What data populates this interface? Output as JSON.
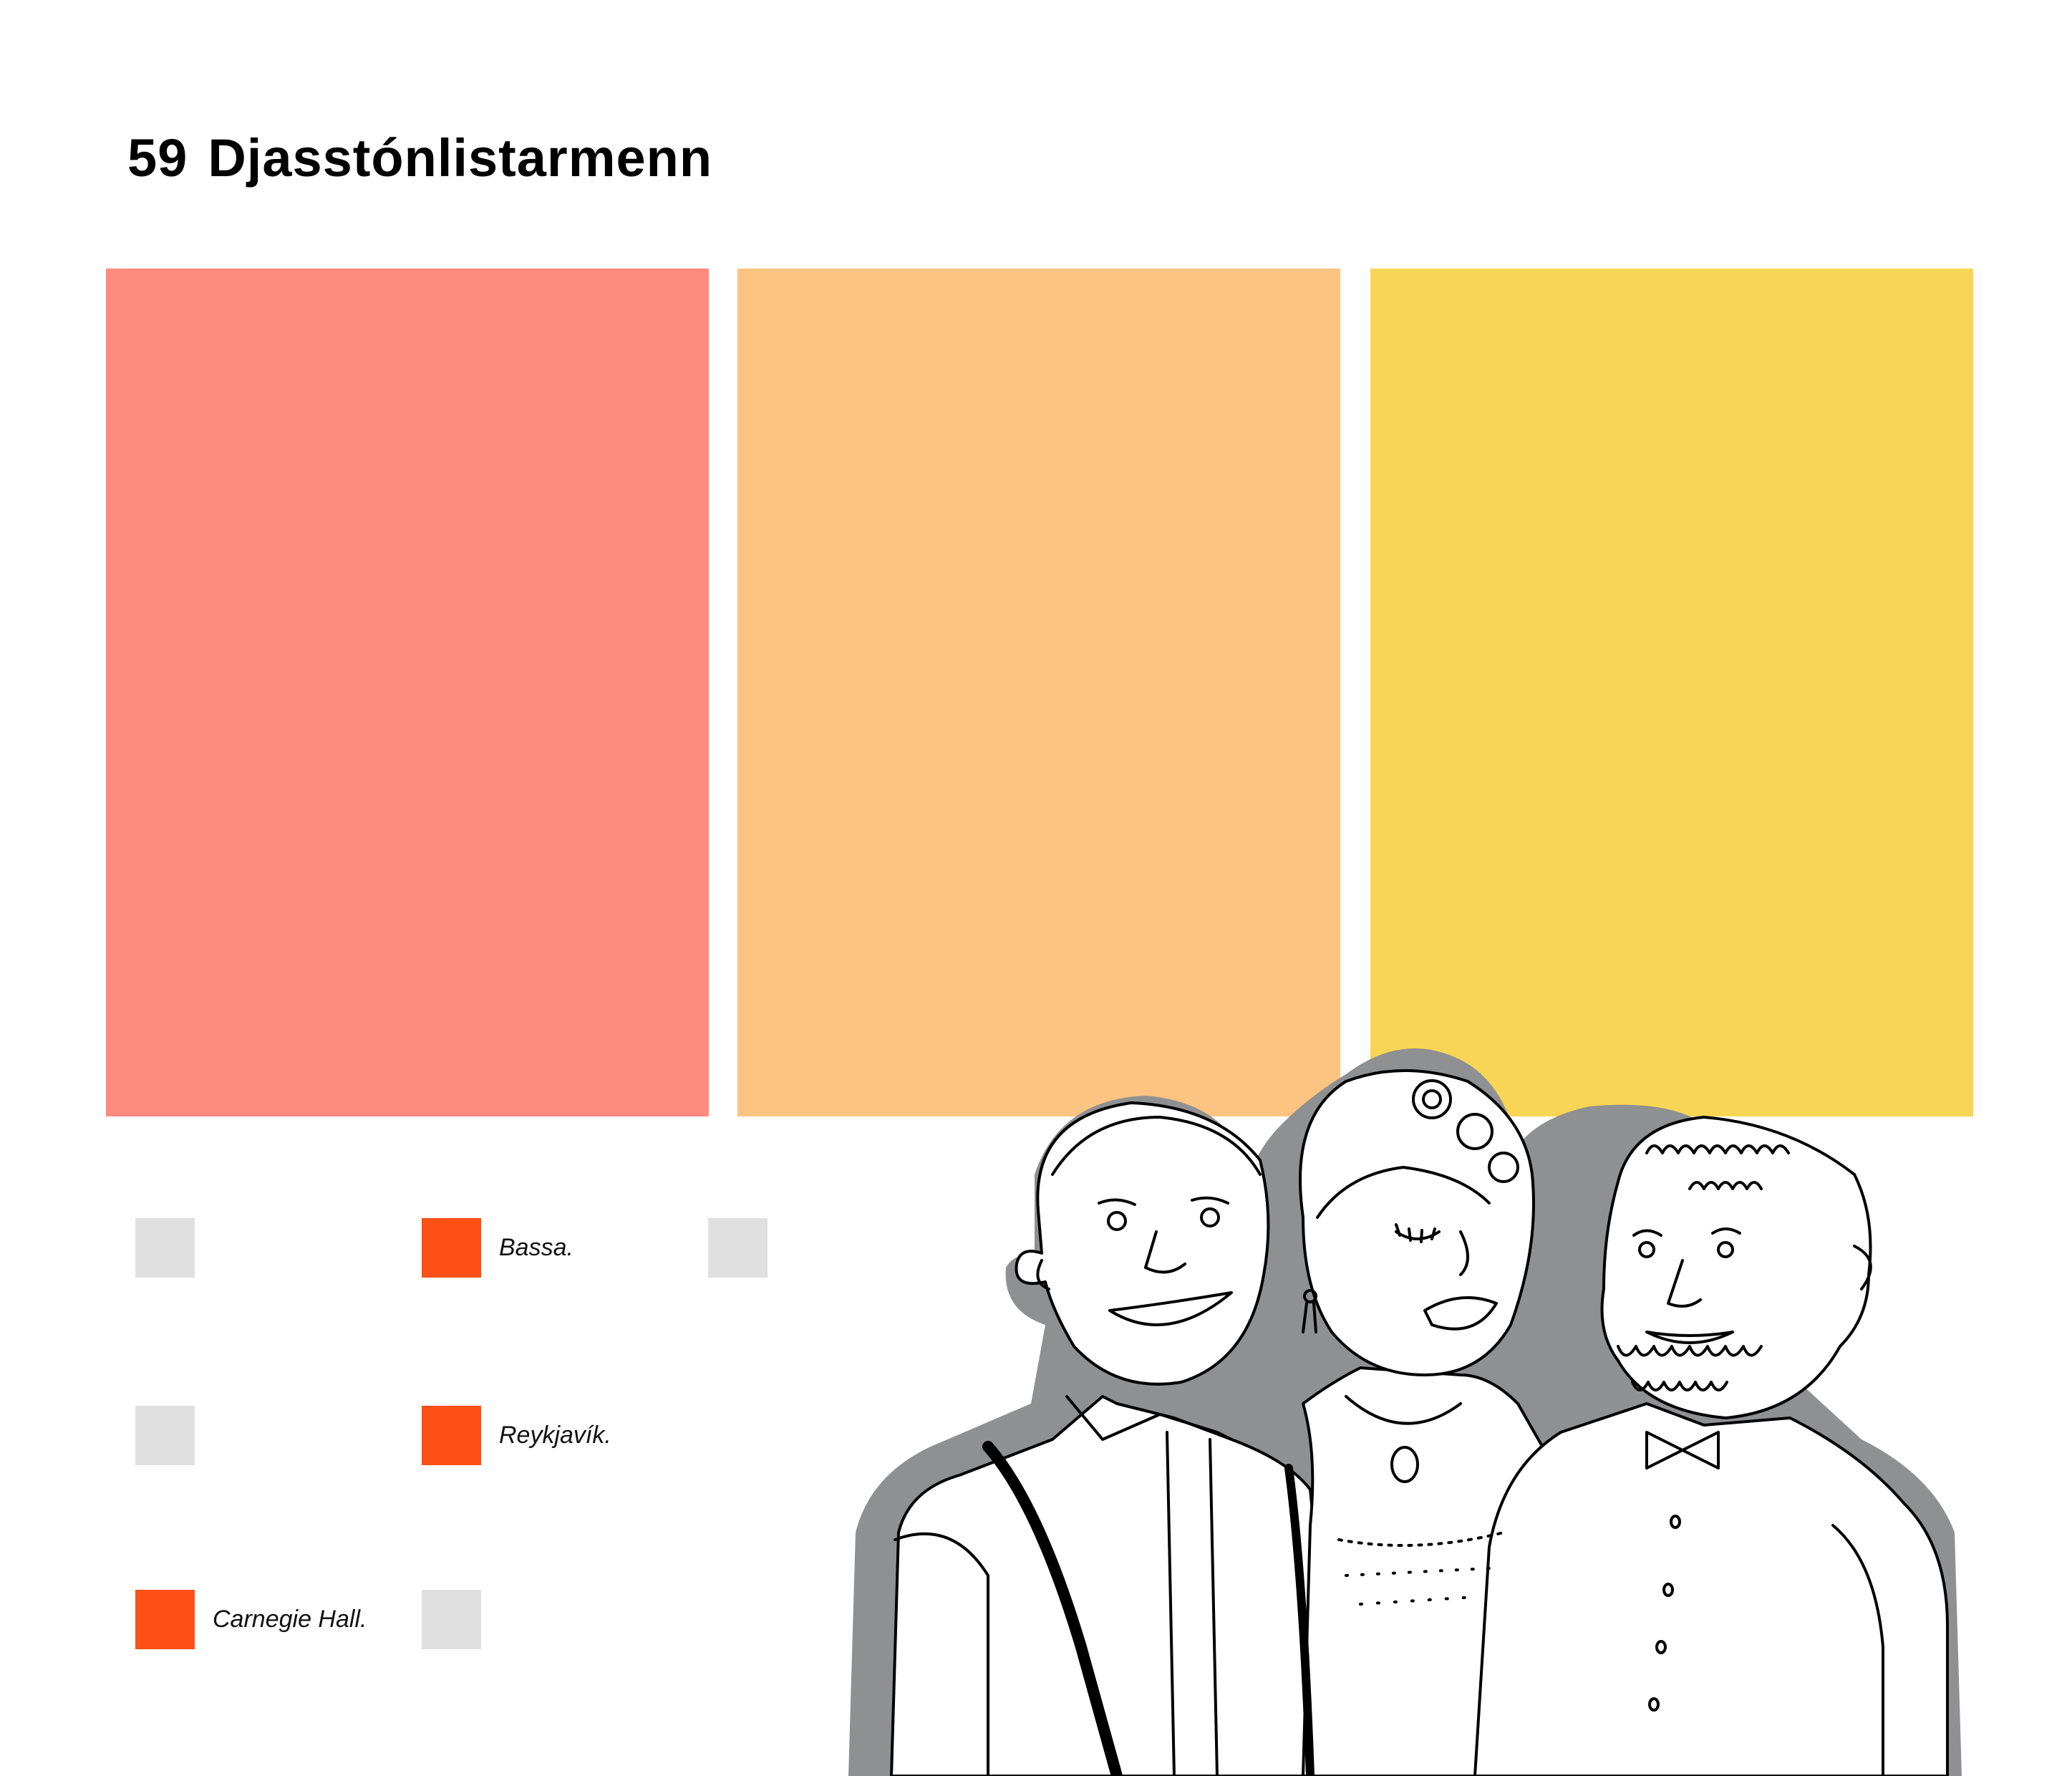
{
  "page": {
    "number": "59",
    "title": "Djasstónlistarmenn"
  },
  "colors": {
    "panel_red": "#FF8A7E",
    "panel_orange": "#FBC480",
    "panel_yellow": "#F8D554",
    "selected": "#FC5014",
    "unselected": "#E0E0E0",
    "shadow": "#8F9092"
  },
  "options": [
    [
      {
        "label": "",
        "selected": false
      },
      {
        "label": "Bassa.",
        "selected": true
      },
      {
        "label": "",
        "selected": false
      }
    ],
    [
      {
        "label": "",
        "selected": false
      },
      {
        "label": "Reykjavík.",
        "selected": true
      }
    ],
    [
      {
        "label": "Carnegie Hall.",
        "selected": true
      },
      {
        "label": "",
        "selected": false
      }
    ]
  ],
  "illustration": {
    "description_icon": "three-jazz-musicians-drawing"
  }
}
